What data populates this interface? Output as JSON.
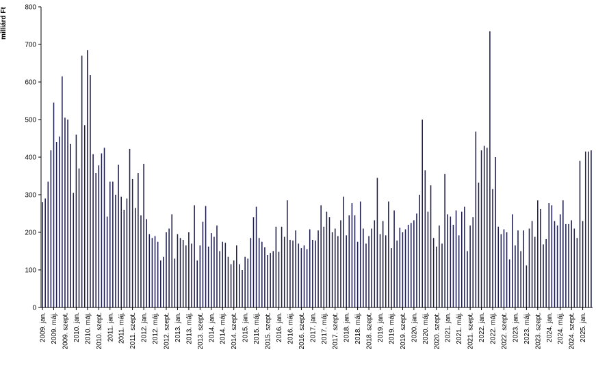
{
  "chart_data": {
    "type": "bar",
    "ylabel": "milliárd Ft",
    "ylim": [
      0,
      800
    ],
    "yticks": [
      0,
      100,
      200,
      300,
      400,
      500,
      600,
      700,
      800
    ],
    "grid": false,
    "bar_color": "#1f1f4f",
    "x_start": "2009-01",
    "xtick_labels": [
      "2009. jan.",
      "2009. máj.",
      "2009. szept.",
      "2010. jan.",
      "2010. máj.",
      "2010. szept.",
      "2011. jan.",
      "2011. máj.",
      "2011. szept.",
      "2012. jan.",
      "2012. máj.",
      "2012. szept.",
      "2013. jan.",
      "2013. máj.",
      "2013. szept.",
      "2014. jan.",
      "2014. máj.",
      "2014. szept.",
      "2015. jan.",
      "2015. máj.",
      "2015. szept.",
      "2016. jan.",
      "2016. máj.",
      "2016. szept.",
      "2017. jan.",
      "2017. máj.",
      "2017. szept.",
      "2018. jan.",
      "2018. máj.",
      "2018. szept.",
      "2019. jan.",
      "2019. máj.",
      "2019. szept.",
      "2020. jan.",
      "2020. máj.",
      "2020. szept.",
      "2021. jan.",
      "2021. máj.",
      "2021. szept.",
      "2022. jan.",
      "2022. máj.",
      "2022. szept.",
      "2023. jan.",
      "2023. máj.",
      "2023. szept.",
      "2024. jan.",
      "2024. máj.",
      "2024. szept.",
      "2025. jan."
    ],
    "values": [
      280,
      290,
      335,
      418,
      545,
      440,
      455,
      615,
      505,
      500,
      435,
      305,
      460,
      370,
      670,
      485,
      685,
      618,
      408,
      358,
      378,
      410,
      425,
      242,
      335,
      335,
      300,
      380,
      295,
      260,
      290,
      422,
      342,
      265,
      358,
      245,
      382,
      235,
      195,
      185,
      190,
      175,
      125,
      135,
      200,
      210,
      248,
      130,
      195,
      185,
      180,
      165,
      200,
      170,
      272,
      125,
      165,
      228,
      270,
      162,
      198,
      188,
      218,
      150,
      175,
      172,
      135,
      115,
      125,
      165,
      115,
      100,
      135,
      130,
      185,
      240,
      268,
      185,
      175,
      160,
      140,
      145,
      150,
      215,
      148,
      215,
      188,
      285,
      180,
      178,
      205,
      170,
      158,
      165,
      155,
      208,
      180,
      178,
      205,
      272,
      215,
      255,
      240,
      200,
      210,
      190,
      232,
      295,
      192,
      245,
      278,
      245,
      175,
      282,
      210,
      170,
      190,
      210,
      232,
      345,
      195,
      230,
      192,
      282,
      158,
      258,
      178,
      212,
      200,
      208,
      220,
      225,
      232,
      250,
      300,
      500,
      365,
      255,
      325,
      185,
      162,
      218,
      170,
      355,
      248,
      242,
      220,
      258,
      192,
      255,
      268,
      150,
      218,
      240,
      468,
      332,
      418,
      430,
      425,
      735,
      315,
      400,
      215,
      195,
      208,
      200,
      128,
      248,
      165,
      205,
      150,
      205,
      112,
      210,
      230,
      188,
      285,
      262,
      168,
      182,
      278,
      272,
      230,
      218,
      248,
      285,
      222,
      222,
      232,
      210,
      185,
      390,
      230,
      415,
      415,
      418
    ]
  }
}
